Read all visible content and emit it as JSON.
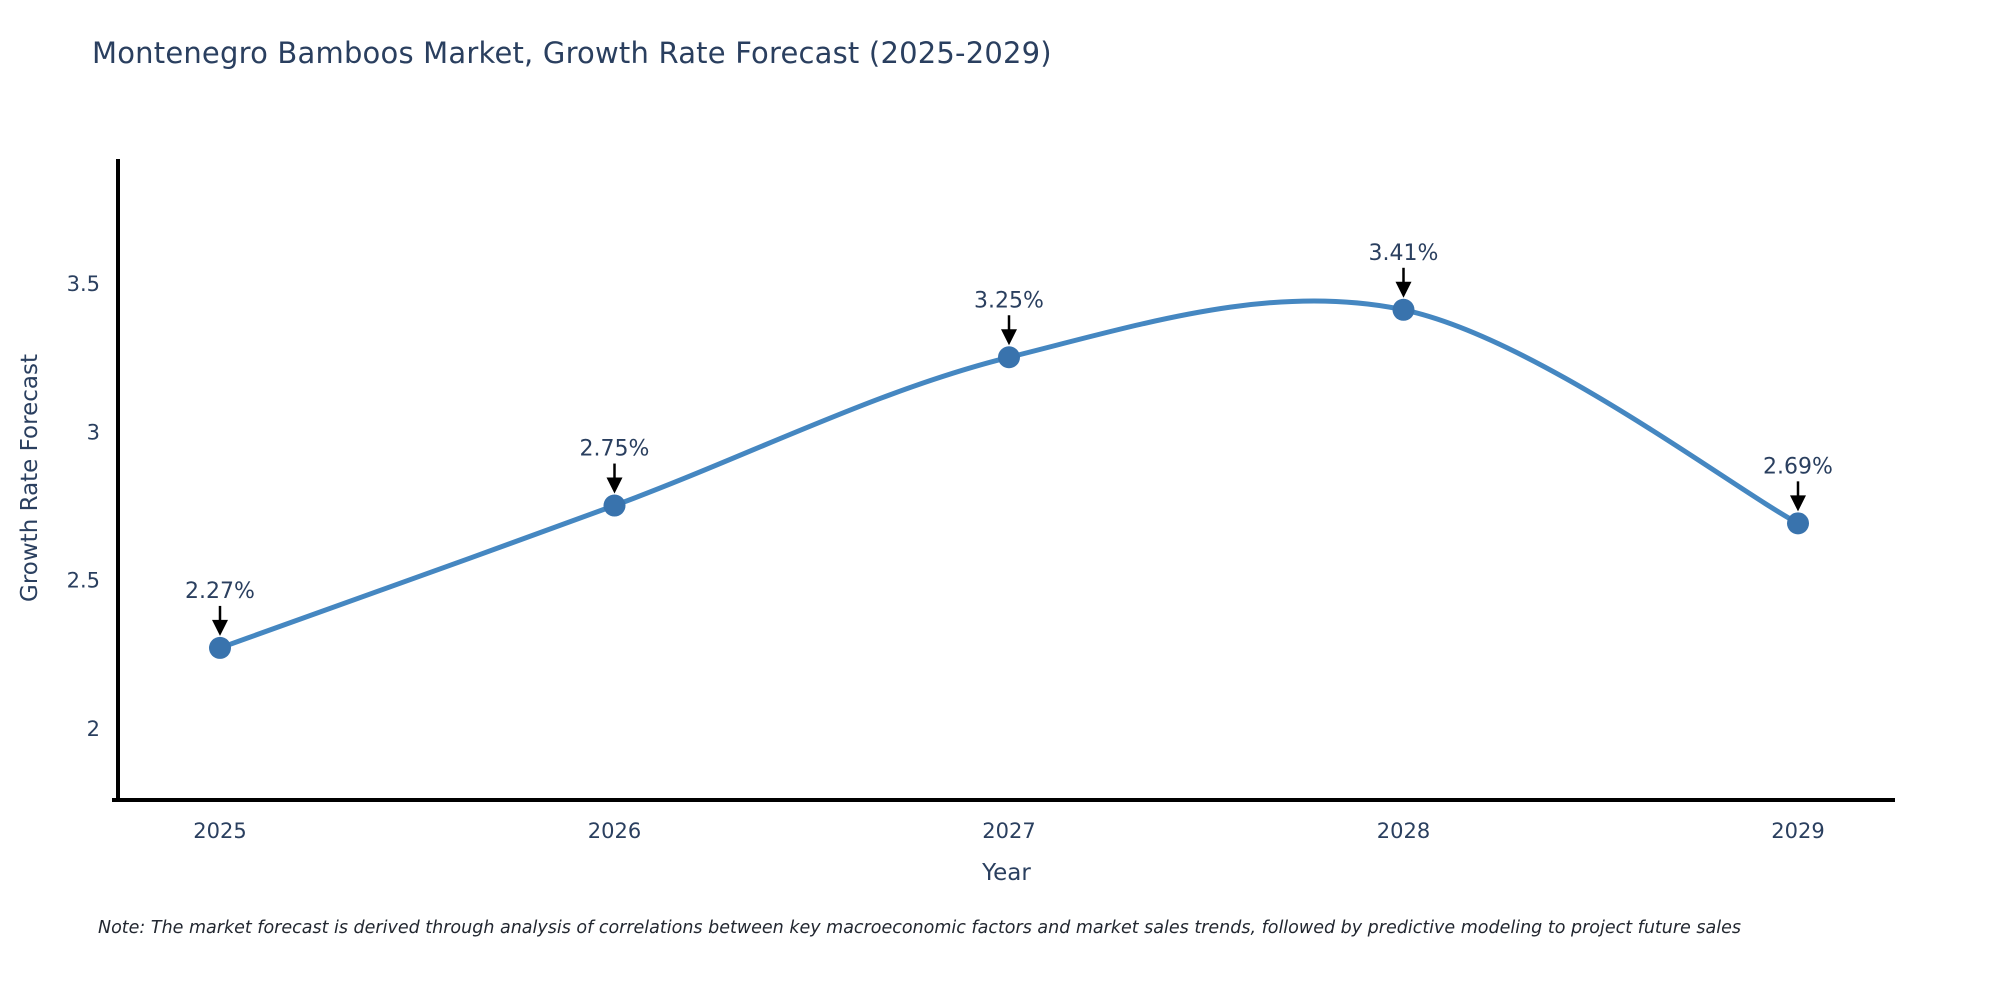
{
  "title": "Montenegro Bamboos Market, Growth Rate Forecast (2025-2029)",
  "note": "Note: The market forecast is derived through analysis of correlations between key macroeconomic factors and market sales trends, followed by predictive modeling to project future sales",
  "chart_data": {
    "type": "line",
    "title": "Montenegro Bamboos Market, Growth Rate Forecast (2025-2029)",
    "xlabel": "Year",
    "ylabel": "Growth Rate Forecast",
    "x": [
      2025,
      2026,
      2027,
      2028,
      2029
    ],
    "series": [
      {
        "name": "Growth Rate Forecast",
        "values": [
          2.27,
          2.75,
          3.25,
          3.41,
          2.69
        ]
      }
    ],
    "point_labels": [
      "2.27%",
      "2.75%",
      "3.25%",
      "3.41%",
      "2.69%"
    ],
    "yticks": [
      2,
      2.5,
      3,
      3.5
    ],
    "ylim": [
      1.76,
      3.92
    ],
    "line_shape": "spline",
    "grid": false,
    "legend": "none",
    "colors": {
      "line": "#4587c1",
      "marker": "#3973ad",
      "axis": "#000000",
      "tick_text": "#2a3f5f",
      "annotation_text": "#2a3f5f",
      "annotation_arrow": "#000000",
      "background": "#ffffff"
    }
  }
}
